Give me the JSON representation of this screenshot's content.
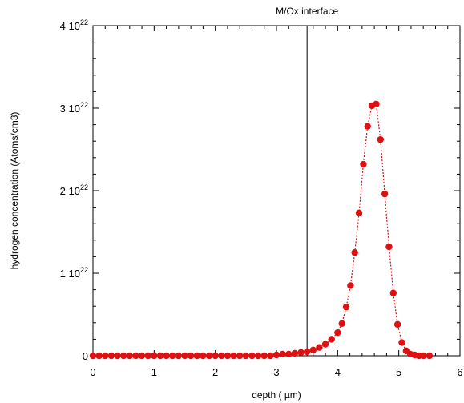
{
  "chart_data": {
    "type": "scatter",
    "title": "",
    "xlabel": "depth ( µm)",
    "ylabel": "hydrogen concentration (Atoms/cm3)",
    "xlim": [
      0,
      6
    ],
    "ylim": [
      0,
      4e+22
    ],
    "x_ticks": [
      {
        "value": 0,
        "label": "0"
      },
      {
        "value": 1,
        "label": "1"
      },
      {
        "value": 2,
        "label": "2"
      },
      {
        "value": 3,
        "label": "3"
      },
      {
        "value": 4,
        "label": "4"
      },
      {
        "value": 5,
        "label": "5"
      },
      {
        "value": 6,
        "label": "6"
      }
    ],
    "y_ticks": [
      {
        "value": 0,
        "mantissa": "0",
        "exponent": ""
      },
      {
        "value": 1e+22,
        "mantissa": "1 10",
        "exponent": "22"
      },
      {
        "value": 2e+22,
        "mantissa": "2 10",
        "exponent": "22"
      },
      {
        "value": 3e+22,
        "mantissa": "3 10",
        "exponent": "22"
      },
      {
        "value": 4e+22,
        "mantissa": "4 10",
        "exponent": "22"
      }
    ],
    "annotations": [
      {
        "text": "M/Ox interface",
        "x": 3.5
      }
    ],
    "grid": false,
    "legend": "none",
    "series": [
      {
        "color": "#dd1111",
        "marker": "circle",
        "line": "dotted",
        "x": [
          0.0,
          0.1,
          0.2,
          0.3,
          0.4,
          0.5,
          0.6,
          0.7,
          0.8,
          0.9,
          1.0,
          1.1,
          1.2,
          1.3,
          1.4,
          1.5,
          1.6,
          1.7,
          1.8,
          1.9,
          2.0,
          2.1,
          2.2,
          2.3,
          2.4,
          2.5,
          2.6,
          2.7,
          2.8,
          2.9,
          3.0,
          3.1,
          3.2,
          3.3,
          3.4,
          3.5,
          3.6,
          3.7,
          3.8,
          3.9,
          4.0,
          4.07,
          4.14,
          4.21,
          4.28,
          4.35,
          4.42,
          4.49,
          4.56,
          4.63,
          4.7,
          4.77,
          4.84,
          4.91,
          4.98,
          5.05,
          5.12,
          5.19,
          5.26,
          5.33,
          5.4,
          5.5
        ],
        "y": [
          0.0,
          0.0,
          0.0,
          0.0,
          0.0,
          0.0,
          0.0,
          0.0,
          0.0,
          0.0,
          0.0,
          0.0,
          0.0,
          0.0,
          0.0,
          0.0,
          0.0,
          0.0,
          0.0,
          0.0,
          0.0,
          0.0,
          0.0,
          0.0,
          0.0,
          0.0,
          0.0,
          0.0,
          0.0,
          0.0,
          1e+20,
          2e+20,
          2e+20,
          3e+20,
          4e+20,
          5e+20,
          7e+20,
          1e+21,
          1.4e+21,
          2e+21,
          2.8e+21,
          3.9e+21,
          5.9e+21,
          8.5e+21,
          1.25e+22,
          1.73e+22,
          2.32e+22,
          2.78e+22,
          3.03e+22,
          3.05e+22,
          2.62e+22,
          1.96e+22,
          1.32e+22,
          7.6e+21,
          3.8e+21,
          1.6e+21,
          6e+20,
          2e+20,
          1e+20,
          0.0,
          0.0,
          0.0
        ]
      }
    ]
  }
}
